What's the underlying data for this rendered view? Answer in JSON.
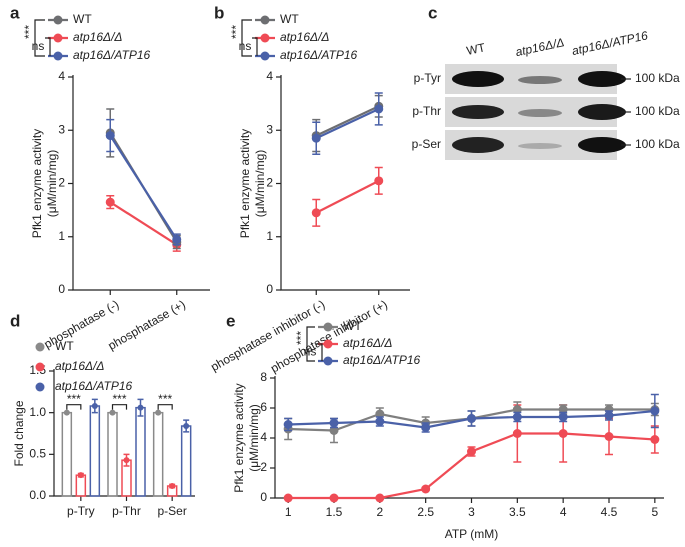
{
  "chart_data": [
    {
      "panel": "a",
      "type": "line",
      "categories": [
        "phosphatase (-)",
        "phosphatase (+)"
      ],
      "series": [
        {
          "name": "WT",
          "color": "#6d6e71",
          "values": [
            2.95,
            0.9
          ],
          "errors": [
            0.45,
            0.12
          ]
        },
        {
          "name": "atp16Δ/Δ",
          "color": "#ef4b55",
          "values": [
            1.65,
            0.85
          ],
          "errors": [
            0.12,
            0.12
          ]
        },
        {
          "name": "atp16Δ/ATP16",
          "color": "#4a61a8",
          "values": [
            2.9,
            0.95
          ],
          "errors": [
            0.3,
            0.1
          ]
        }
      ],
      "ylim": [
        0,
        4
      ],
      "yticks": [
        0,
        1,
        2,
        3,
        4
      ],
      "ylabel": [
        "Pfk1 enzyme activity",
        "(μM/min/mg)"
      ],
      "annotations": [
        "***",
        "ns"
      ]
    },
    {
      "panel": "b",
      "type": "line",
      "categories": [
        "phosphatase inhibitor (-)",
        "phosphatase inhibitor (+)"
      ],
      "series": [
        {
          "name": "WT",
          "color": "#6d6e71",
          "values": [
            2.9,
            3.45
          ],
          "errors": [
            0.3,
            0.2
          ]
        },
        {
          "name": "atp16Δ/Δ",
          "color": "#ef4b55",
          "values": [
            1.45,
            2.05
          ],
          "errors": [
            0.25,
            0.25
          ]
        },
        {
          "name": "atp16Δ/ATP16",
          "color": "#4a61a8",
          "values": [
            2.85,
            3.4
          ],
          "errors": [
            0.3,
            0.3
          ]
        }
      ],
      "ylim": [
        0,
        4
      ],
      "yticks": [
        0,
        1,
        2,
        3,
        4
      ],
      "ylabel": [
        "Pfk1 enzyme activity",
        "(μM/min/mg)"
      ],
      "annotations": [
        "***",
        "ns"
      ]
    },
    {
      "panel": "d",
      "type": "bar",
      "categories": [
        "p-Try",
        "p-Thr",
        "p-Ser"
      ],
      "series": [
        {
          "name": "WT",
          "color": "#8a8a8a",
          "values": [
            1,
            1,
            1
          ],
          "errors": [
            0,
            0,
            0
          ]
        },
        {
          "name": "atp16Δ/Δ",
          "color": "#ef4b55",
          "values": [
            0.25,
            0.43,
            0.12
          ],
          "errors": [
            0.02,
            0.07,
            0.02
          ]
        },
        {
          "name": "atp16Δ/ATP16",
          "color": "#4a61a8",
          "values": [
            1.08,
            1.06,
            0.84
          ],
          "errors": [
            0.08,
            0.1,
            0.07
          ]
        }
      ],
      "ylim": [
        0,
        1.5
      ],
      "yticks": [
        {
          "value": 0,
          "label": "0.0"
        },
        {
          "value": 0.5,
          "label": "0.5"
        },
        {
          "value": 1,
          "label": "1.0"
        },
        {
          "value": 1.5,
          "label": "1.5"
        }
      ],
      "ylabel": [
        "Fold change"
      ],
      "annotations": [
        "***",
        "***",
        "***"
      ]
    },
    {
      "panel": "e",
      "type": "line",
      "x": [
        1,
        1.5,
        2,
        2.5,
        3,
        3.5,
        4,
        4.5,
        5
      ],
      "series": [
        {
          "name": "WT",
          "color": "#7f7f7f",
          "values": [
            4.6,
            4.5,
            5.6,
            5.0,
            5.3,
            5.9,
            5.9,
            5.9,
            5.9
          ],
          "errors": [
            0.7,
            0.8,
            0.4,
            0.4,
            0.5,
            0.5,
            0.3,
            0.3,
            0.4
          ]
        },
        {
          "name": "atp16Δ/Δ",
          "color": "#ef4b55",
          "values": [
            0,
            0,
            0,
            0.6,
            3.1,
            4.3,
            4.3,
            4.1,
            3.9
          ],
          "errors": [
            0,
            0,
            0,
            0.1,
            0.3,
            1.9,
            1.9,
            1.2,
            0.9
          ]
        },
        {
          "name": "atp16Δ/ATP16",
          "color": "#4a61a8",
          "values": [
            4.9,
            5.0,
            5.1,
            4.7,
            5.3,
            5.4,
            5.4,
            5.5,
            5.8
          ],
          "errors": [
            0.4,
            0.3,
            0.3,
            0.3,
            0.5,
            0.3,
            0.3,
            0.3,
            1.1
          ]
        }
      ],
      "xlim": [
        0.9,
        5.1
      ],
      "xticks": [
        1,
        1.5,
        2,
        2.5,
        3,
        3.5,
        4,
        4.5,
        5
      ],
      "xlabel": "ATP (mM)",
      "ylim": [
        0,
        8
      ],
      "yticks": [
        0,
        2,
        4,
        6,
        8
      ],
      "ylabel": [
        "Pfk1 enzyme activity",
        "(μM/min/mg)"
      ],
      "annotations": [
        "***",
        "ns"
      ]
    }
  ],
  "blot": {
    "panel": "c",
    "lanes": [
      "WT",
      "atp16Δ/Δ",
      "atp16Δ/ATP16"
    ],
    "rows": [
      {
        "label": "p-Tyr",
        "marker": "100 kDa"
      },
      {
        "label": "p-Thr",
        "marker": "100 kDa"
      },
      {
        "label": "p-Ser",
        "marker": "100 kDa"
      }
    ]
  }
}
